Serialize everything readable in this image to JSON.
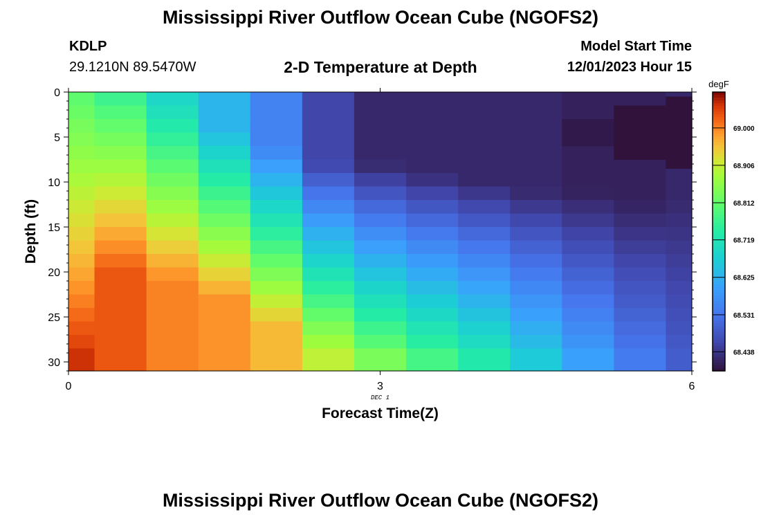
{
  "header": {
    "title": "Mississippi River Outflow Ocean Cube (NGOFS2)",
    "station_id": "KDLP",
    "station_coords": "29.1210N  89.5470W",
    "chart_title": "2-D Temperature at Depth",
    "model_start_label": "Model Start Time",
    "model_start_value": "12/01/2023 Hour 15"
  },
  "footer": {
    "title": "Mississippi River Outflow Ocean Cube (NGOFS2)"
  },
  "chart_data": {
    "type": "heatmap",
    "title": "2-D Temperature at Depth",
    "xlabel": "Forecast Time(Z)",
    "ylabel": "Depth (ft)",
    "x_date_label": "DEC 1",
    "xlim": [
      0,
      6
    ],
    "ylim": [
      0,
      31
    ],
    "y_inverted": true,
    "x_ticks": [
      "0",
      "3",
      "6"
    ],
    "y_ticks": [
      "0",
      "5",
      "10",
      "15",
      "20",
      "25",
      "30"
    ],
    "x_tick_values": [
      0,
      3,
      6
    ],
    "y_tick_values": [
      0,
      5,
      10,
      15,
      20,
      25,
      30
    ],
    "x_edges": [
      0,
      0.25,
      0.75,
      1.25,
      1.75,
      2.25,
      2.75,
      3.25,
      3.75,
      4.25,
      4.75,
      5.25,
      5.75,
      6
    ],
    "y_edges": [
      0,
      1.5,
      3,
      4.5,
      6,
      7.5,
      9,
      10.5,
      12,
      13.5,
      15,
      16.5,
      18,
      19.5,
      21,
      22.5,
      24,
      25.5,
      27,
      28.5,
      31
    ],
    "colorbar": {
      "unit": "degF",
      "ticks": [
        "69.000",
        "68.906",
        "68.812",
        "68.719",
        "68.625",
        "68.531",
        "68.438"
      ],
      "tick_values": [
        69.0,
        68.906,
        68.812,
        68.719,
        68.625,
        68.531,
        68.438
      ],
      "range": [
        68.39,
        69.09
      ]
    },
    "columns": [
      {
        "top": 68.8,
        "bottom": 69.07,
        "ramp_start": 0.0,
        "ramp_end": 31.0
      },
      {
        "top": 68.76,
        "bottom": 69.03,
        "ramp_start": 0.0,
        "ramp_end": 20.0
      },
      {
        "top": 68.69,
        "bottom": 69.0,
        "ramp_start": 1.0,
        "ramp_end": 21.0
      },
      {
        "top": 68.63,
        "bottom": 68.99,
        "ramp_start": 4.0,
        "ramp_end": 23.0
      },
      {
        "top": 68.55,
        "bottom": 68.96,
        "ramp_start": 6.0,
        "ramp_end": 26.0
      },
      {
        "top": 68.46,
        "bottom": 68.9,
        "ramp_start": 8.0,
        "ramp_end": 29.0
      },
      {
        "top": 68.42,
        "bottom": 68.86,
        "ramp_start": 8.0,
        "ramp_end": 31.0
      },
      {
        "top": 68.42,
        "bottom": 68.8,
        "ramp_start": 9.0,
        "ramp_end": 31.0
      },
      {
        "top": 68.42,
        "bottom": 68.75,
        "ramp_start": 10.0,
        "ramp_end": 31.0
      },
      {
        "top": 68.42,
        "bottom": 68.68,
        "ramp_start": 11.0,
        "ramp_end": 31.0
      },
      {
        "top": 68.41,
        "bottom": 68.61,
        "ramp_start": 11.0,
        "ramp_end": 31.0
      },
      {
        "top": 68.41,
        "bottom": 68.55,
        "ramp_start": 12.0,
        "ramp_end": 31.0
      },
      {
        "top": 68.42,
        "bottom": 68.5,
        "ramp_start": 12.0,
        "ramp_end": 31.0
      }
    ],
    "cold_patches": [
      {
        "col": 10,
        "y0": 3.0,
        "y1": 6.0,
        "value": 68.4
      },
      {
        "col": 11,
        "y0": 1.5,
        "y1": 3.0,
        "value": 68.39
      },
      {
        "col": 11,
        "y0": 3.0,
        "y1": 6.0,
        "value": 68.37
      },
      {
        "col": 11,
        "y0": 6.0,
        "y1": 7.5,
        "value": 68.38
      },
      {
        "col": 12,
        "y0": 0.5,
        "y1": 1.5,
        "value": 68.37
      },
      {
        "col": 12,
        "y0": 1.5,
        "y1": 3.0,
        "value": 68.35
      },
      {
        "col": 12,
        "y0": 3.0,
        "y1": 7.5,
        "value": 68.33
      },
      {
        "col": 12,
        "y0": 7.5,
        "y1": 8.5,
        "value": 68.36
      }
    ]
  }
}
